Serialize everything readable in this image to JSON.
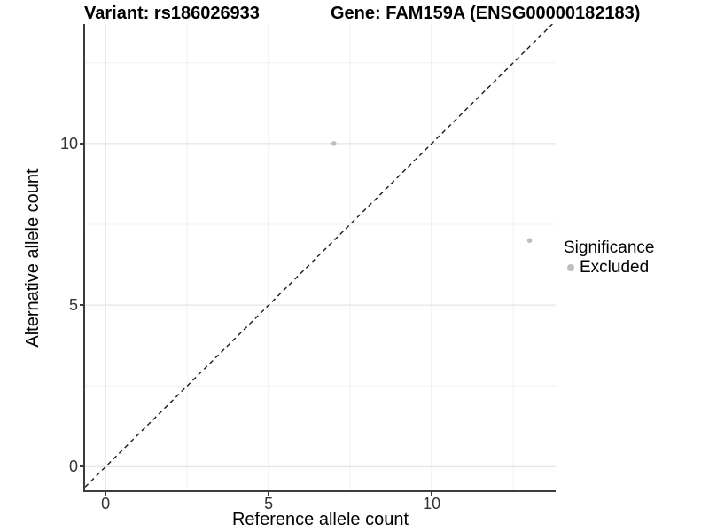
{
  "header": {
    "variant_title": "Variant: rs186026933",
    "gene_title": "Gene: FAM159A (ENSG00000182183)"
  },
  "legend": {
    "title": "Significance",
    "items": [
      {
        "label": "Excluded",
        "color": "#bebebe"
      }
    ]
  },
  "chart_data": {
    "type": "scatter",
    "title": "Variant: rs186026933 | Gene: FAM159A (ENSG00000182183)",
    "xlabel": "Reference allele count",
    "ylabel": "Alternative allele count",
    "xlim": [
      -0.63,
      13.8
    ],
    "ylim": [
      -0.73,
      13.7
    ],
    "x_major_ticks": [
      0,
      5,
      10
    ],
    "y_major_ticks": [
      0,
      5,
      10
    ],
    "x_minor_ticks": [
      2.5,
      7.5,
      12.5
    ],
    "y_minor_ticks": [
      2.5,
      7.5,
      12.5
    ],
    "grid": "major+minor",
    "legend_position": "right",
    "series": [
      {
        "name": "Excluded",
        "color": "#bebebe",
        "marker": "circle",
        "points": [
          {
            "x": 7,
            "y": 10
          },
          {
            "x": 13,
            "y": 7
          }
        ]
      }
    ],
    "reference_line": {
      "kind": "identity y=x",
      "slope": 1,
      "intercept": 0,
      "style": "dashed",
      "color": "#1a1a1a"
    }
  },
  "colors": {
    "background": "#ffffff",
    "grid_major": "#e4e4e4",
    "grid_minor": "#f0f0f0",
    "axis_line": "#3c3c3c",
    "tick_label": "#333333",
    "point": "#bebebe"
  }
}
